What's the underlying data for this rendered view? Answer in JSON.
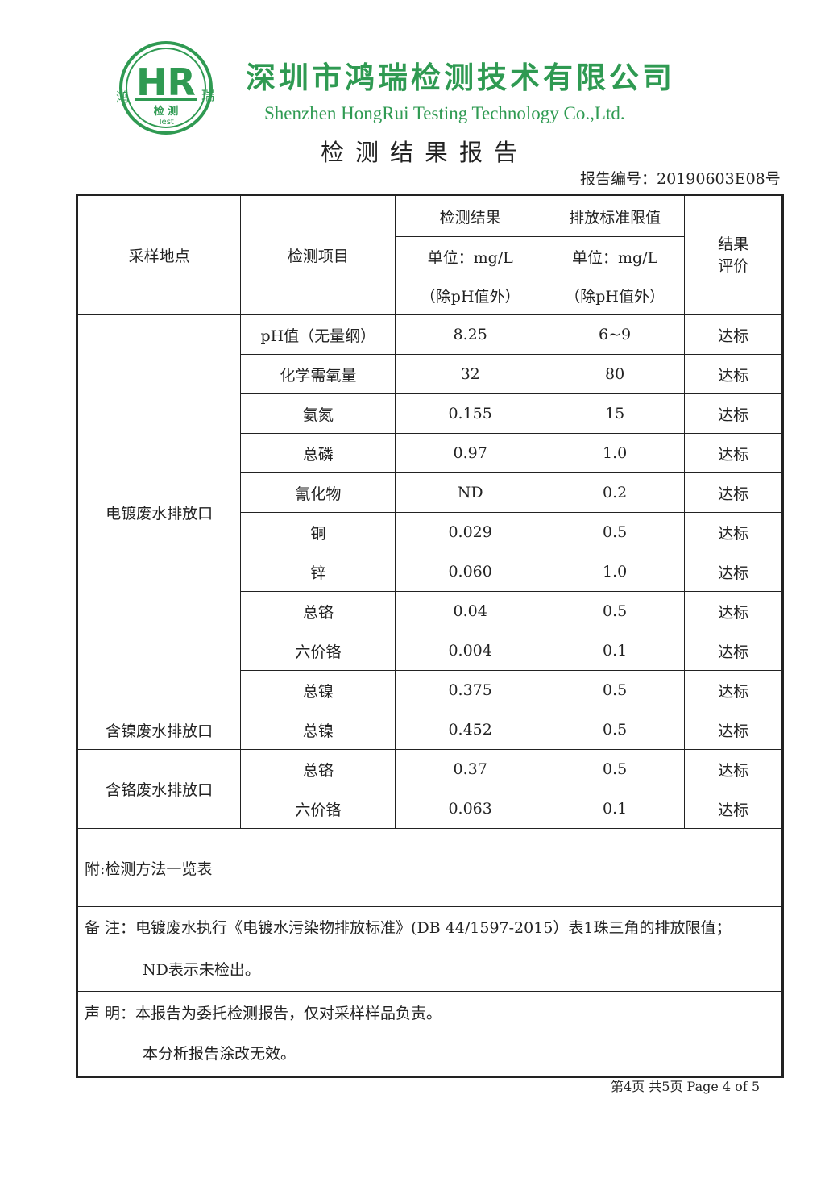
{
  "header": {
    "logo": {
      "letters": "HR",
      "side_left": "鸿",
      "side_right": "瑞",
      "sub_cn": "检测",
      "sub_en": "Test"
    },
    "company_cn": "深圳市鸿瑞检测技术有限公司",
    "company_en": "Shenzhen HongRui Testing Technology Co.,Ltd.",
    "report_title": "检测结果报告",
    "report_no": "报告编号：20190603E08号",
    "brand_color": "#2f9a52"
  },
  "table": {
    "headers": {
      "location": "采样地点",
      "item": "检测项目",
      "result": "检测结果",
      "limit": "排放标准限值",
      "unit_result": "单位：mg/L",
      "unit_limit": "单位：mg/L",
      "except_result": "（除pH值外）",
      "except_limit": "（除pH值外）",
      "evaluation": "结果评价"
    },
    "groups": [
      {
        "location": "电镀废水排放口",
        "rows": [
          {
            "item": "pH值（无量纲）",
            "result": "8.25",
            "limit": "6~9",
            "eval": "达标"
          },
          {
            "item": "化学需氧量",
            "result": "32",
            "limit": "80",
            "eval": "达标"
          },
          {
            "item": "氨氮",
            "result": "0.155",
            "limit": "15",
            "eval": "达标"
          },
          {
            "item": "总磷",
            "result": "0.97",
            "limit": "1.0",
            "eval": "达标"
          },
          {
            "item": "氰化物",
            "result": "ND",
            "limit": "0.2",
            "eval": "达标"
          },
          {
            "item": "铜",
            "result": "0.029",
            "limit": "0.5",
            "eval": "达标"
          },
          {
            "item": "锌",
            "result": "0.060",
            "limit": "1.0",
            "eval": "达标"
          },
          {
            "item": "总铬",
            "result": "0.04",
            "limit": "0.5",
            "eval": "达标"
          },
          {
            "item": "六价铬",
            "result": "0.004",
            "limit": "0.1",
            "eval": "达标"
          },
          {
            "item": "总镍",
            "result": "0.375",
            "limit": "0.5",
            "eval": "达标"
          }
        ]
      },
      {
        "location": "含镍废水排放口",
        "rows": [
          {
            "item": "总镍",
            "result": "0.452",
            "limit": "0.5",
            "eval": "达标"
          }
        ]
      },
      {
        "location": "含铬废水排放口",
        "rows": [
          {
            "item": "总铬",
            "result": "0.37",
            "limit": "0.5",
            "eval": "达标"
          },
          {
            "item": "六价铬",
            "result": "0.063",
            "limit": "0.1",
            "eval": "达标"
          }
        ]
      }
    ],
    "appendix": "附:检测方法一览表",
    "notes_label": "备 注：",
    "notes_line1": "电镀废水执行《电镀水污染物排放标准》(DB 44/1597-2015）表1珠三角的排放限值；",
    "notes_line2": "ND表示未检出。",
    "statement_label": "声 明：",
    "statement_line1": "本报告为委托检测报告，仅对采样样品负责。",
    "statement_line2": "本分析报告涂改无效。"
  },
  "footer": {
    "page": "第4页 共5页 Page 4 of 5"
  }
}
